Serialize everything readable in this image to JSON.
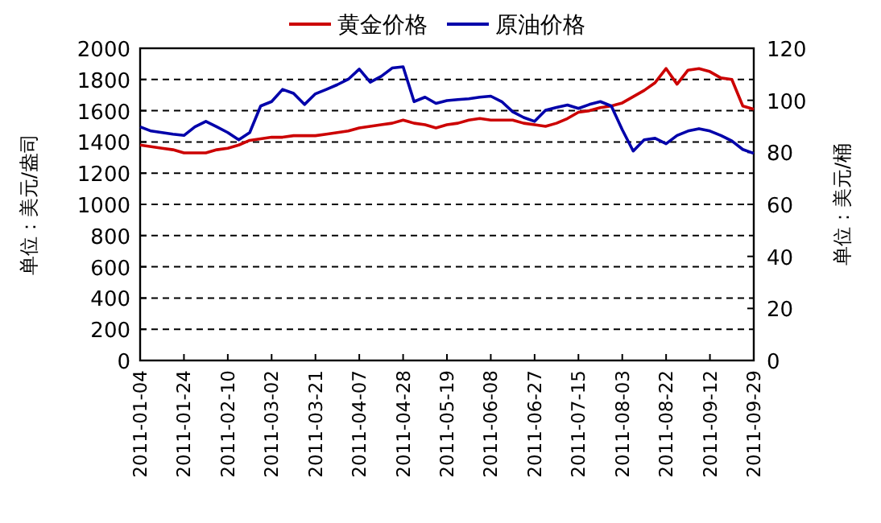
{
  "chart_data": {
    "type": "line",
    "categories": [
      "2011-01-04",
      null,
      null,
      null,
      "2011-01-24",
      null,
      null,
      null,
      "2011-02-10",
      null,
      null,
      null,
      "2011-03-02",
      null,
      null,
      null,
      "2011-03-21",
      null,
      null,
      null,
      "2011-04-07",
      null,
      null,
      null,
      "2011-04-28",
      null,
      null,
      null,
      "2011-05-19",
      null,
      null,
      null,
      "2011-06-08",
      null,
      null,
      null,
      "2011-06-27",
      null,
      null,
      null,
      "2011-07-15",
      null,
      null,
      null,
      "2011-08-03",
      null,
      null,
      null,
      "2011-08-22",
      null,
      null,
      null,
      "2011-09-12",
      null,
      null,
      null,
      "2011-09-29"
    ],
    "series": [
      {
        "name": "黄金价格",
        "color": "#cc0000",
        "values": [
          1380,
          1370,
          1360,
          1350,
          1330,
          1330,
          1330,
          1350,
          1360,
          1380,
          1410,
          1420,
          1430,
          1430,
          1440,
          1440,
          1440,
          1450,
          1460,
          1470,
          1490,
          1500,
          1510,
          1520,
          1540,
          1520,
          1510,
          1490,
          1510,
          1520,
          1540,
          1550,
          1540,
          1540,
          1540,
          1520,
          1510,
          1500,
          1520,
          1550,
          1590,
          1600,
          1620,
          1630,
          1650,
          1690,
          1730,
          1780,
          1870,
          1770,
          1860,
          1870,
          1850,
          1810,
          1800,
          1630,
          1610
        ]
      },
      {
        "name": "原油价格",
        "color": "#0000aa",
        "axis": "y2",
        "values": [
          89.8,
          88.2,
          87.6,
          87,
          86.5,
          89.8,
          91.9,
          89.8,
          87.6,
          84.8,
          87.6,
          97.8,
          99.5,
          104.2,
          102.7,
          98.4,
          102.5,
          104.2,
          106,
          108.1,
          112,
          107,
          109.2,
          112.4,
          112.9,
          99.5,
          101.2,
          98.8,
          99.9,
          100.3,
          100.6,
          101.2,
          101.6,
          99.5,
          95.6,
          93.4,
          91.9,
          96.2,
          97.3,
          98.2,
          96.9,
          98.4,
          99.5,
          97.8,
          88.7,
          80.5,
          84.8,
          85.4,
          83.3,
          86.5,
          88.2,
          89.1,
          88.2,
          86.5,
          84.4,
          81.1,
          79.6
        ]
      }
    ],
    "ylim": [
      0,
      2000
    ],
    "yticks": [
      0,
      200,
      400,
      600,
      800,
      1000,
      1200,
      1400,
      1600,
      1800,
      2000
    ],
    "y2lim": [
      0,
      120
    ],
    "y2ticks": [
      0,
      20,
      40,
      60,
      80,
      100,
      120
    ],
    "ylabel": "单位：美元/盎司",
    "y2label": "单位：美元/桶",
    "grid": "y",
    "legend": "top"
  }
}
